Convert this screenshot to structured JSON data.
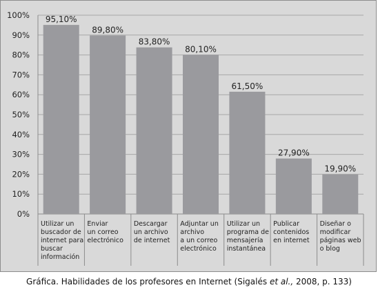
{
  "chart_data": {
    "type": "bar",
    "categories": [
      "Utilizar un buscador de internet para buscar información",
      "Enviar un correo electrónico",
      "Descargar un archivo de internet",
      "Adjuntar un archivo a un correo electrónico",
      "Utilizar un programa de mensajería instantánea",
      "Publicar contenidos en internet",
      "Diseñar o modificar páginas web o blog"
    ],
    "category_lines": [
      [
        "Utilizar un",
        "buscador de",
        "internet para",
        "buscar",
        "información"
      ],
      [
        "Enviar",
        "un correo",
        "electrónico"
      ],
      [
        "Descargar",
        "un archivo",
        "de internet"
      ],
      [
        "Adjuntar un",
        "archivo",
        "a un correo",
        "electrónico"
      ],
      [
        "Utilizar un",
        "programa de",
        "mensajería",
        "instantánea"
      ],
      [
        "Publicar",
        "contenidos",
        "en internet"
      ],
      [
        "Diseñar o",
        "modificar",
        "páginas web",
        "o blog"
      ]
    ],
    "values": [
      95.1,
      89.8,
      83.8,
      80.1,
      61.5,
      27.9,
      19.9
    ],
    "value_labels": [
      "95,10%",
      "89,80%",
      "83,80%",
      "80,10%",
      "61,50%",
      "27,90%",
      "19,90%"
    ],
    "ylim": [
      0,
      100
    ],
    "yticks": [
      0,
      10,
      20,
      30,
      40,
      50,
      60,
      70,
      80,
      90,
      100
    ],
    "ytick_labels": [
      "0%",
      "10%",
      "20%",
      "30%",
      "40%",
      "50%",
      "60%",
      "70%",
      "80%",
      "90%",
      "100%"
    ],
    "grid": true,
    "colors": {
      "background": "#d9d9d9",
      "bar": "#9a9a9e",
      "grid": "#a8a8a8"
    }
  },
  "caption": {
    "prefix": "Gráfica. Habilidades de los profesores en Internet (Sigalés ",
    "italic": "et al.,",
    "suffix": " 2008, p. 133)"
  }
}
